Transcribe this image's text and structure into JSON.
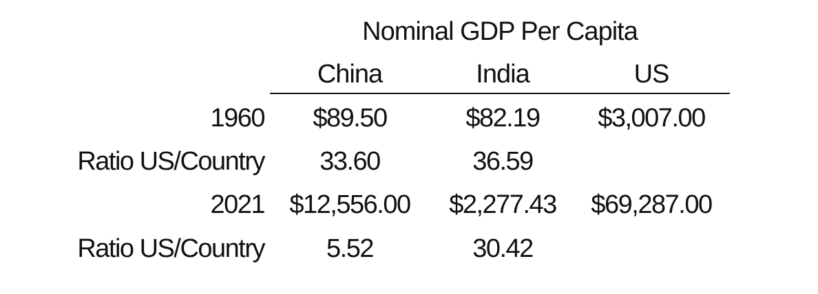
{
  "chart_data": {
    "type": "table",
    "title": "Nominal GDP Per Capita",
    "columns": [
      "China",
      "India",
      "US"
    ],
    "rows": [
      {
        "label": "1960",
        "cells": [
          "$89.50",
          "$82.19",
          "$3,007.00"
        ]
      },
      {
        "label": "Ratio US/Country",
        "cells": [
          "33.60",
          "36.59",
          ""
        ]
      },
      {
        "label": "2021",
        "cells": [
          "$12,556.00",
          "$2,277.43",
          "$69,287.00"
        ]
      },
      {
        "label": "Ratio US/Country",
        "cells": [
          "5.52",
          "30.42",
          ""
        ]
      }
    ]
  }
}
